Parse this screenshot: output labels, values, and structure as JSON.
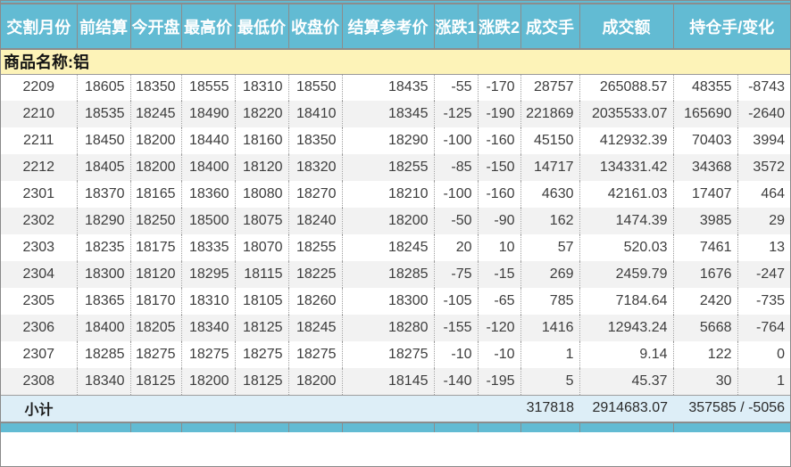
{
  "header": {
    "columns": [
      {
        "key": "delivery-month",
        "label": "交割月份"
      },
      {
        "key": "prev-settlement",
        "label": "前结算"
      },
      {
        "key": "open",
        "label": "今开盘"
      },
      {
        "key": "high",
        "label": "最高价"
      },
      {
        "key": "low",
        "label": "最低价"
      },
      {
        "key": "close",
        "label": "收盘价"
      },
      {
        "key": "settlement-ref",
        "label": "结算参考价"
      },
      {
        "key": "change1",
        "label": "涨跌1"
      },
      {
        "key": "change2",
        "label": "涨跌2"
      },
      {
        "key": "volume",
        "label": "成交手"
      },
      {
        "key": "turnover",
        "label": "成交额"
      },
      {
        "key": "oi-change",
        "label": "持仓手/变化",
        "span": 2
      }
    ]
  },
  "group": {
    "label": "商品名称:铝"
  },
  "cell_keys": [
    "delivery-month",
    "prev-settlement",
    "open",
    "high",
    "low",
    "close",
    "settlement-ref",
    "change1",
    "change2",
    "volume",
    "turnover",
    "open-interest",
    "oi-delta"
  ],
  "rows": [
    [
      "2209",
      "18605",
      "18350",
      "18555",
      "18310",
      "18550",
      "18435",
      "-55",
      "-170",
      "28757",
      "265088.57",
      "48355",
      "-8743"
    ],
    [
      "2210",
      "18535",
      "18245",
      "18490",
      "18220",
      "18410",
      "18345",
      "-125",
      "-190",
      "221869",
      "2035533.07",
      "165690",
      "-2640"
    ],
    [
      "2211",
      "18450",
      "18200",
      "18440",
      "18160",
      "18350",
      "18290",
      "-100",
      "-160",
      "45150",
      "412932.39",
      "70403",
      "3994"
    ],
    [
      "2212",
      "18405",
      "18200",
      "18400",
      "18120",
      "18320",
      "18255",
      "-85",
      "-150",
      "14717",
      "134331.42",
      "34368",
      "3572"
    ],
    [
      "2301",
      "18370",
      "18165",
      "18360",
      "18080",
      "18270",
      "18210",
      "-100",
      "-160",
      "4630",
      "42161.03",
      "17407",
      "464"
    ],
    [
      "2302",
      "18290",
      "18250",
      "18500",
      "18075",
      "18240",
      "18200",
      "-50",
      "-90",
      "162",
      "1474.39",
      "3985",
      "29"
    ],
    [
      "2303",
      "18235",
      "18175",
      "18335",
      "18070",
      "18255",
      "18245",
      "20",
      "10",
      "57",
      "520.03",
      "7461",
      "13"
    ],
    [
      "2304",
      "18300",
      "18120",
      "18295",
      "18115",
      "18225",
      "18285",
      "-75",
      "-15",
      "269",
      "2459.79",
      "1676",
      "-247"
    ],
    [
      "2305",
      "18365",
      "18170",
      "18310",
      "18105",
      "18260",
      "18300",
      "-105",
      "-65",
      "785",
      "7184.64",
      "2420",
      "-735"
    ],
    [
      "2306",
      "18400",
      "18205",
      "18340",
      "18125",
      "18245",
      "18280",
      "-155",
      "-120",
      "1416",
      "12943.24",
      "5668",
      "-764"
    ],
    [
      "2307",
      "18285",
      "18275",
      "18275",
      "18275",
      "18275",
      "18275",
      "-10",
      "-10",
      "1",
      "9.14",
      "122",
      "0"
    ],
    [
      "2308",
      "18340",
      "18125",
      "18200",
      "18125",
      "18200",
      "18145",
      "-140",
      "-195",
      "5",
      "45.37",
      "30",
      "1"
    ]
  ],
  "subtotal": {
    "label": "小计",
    "volume": "317818",
    "turnover": "2914683.07",
    "oi_change": "357585 / -5056"
  },
  "colors": {
    "header_bg": "#62bbd3",
    "header_text": "#ffffff",
    "group_bg": "#fdf3b8",
    "row_alt_bg": "#f2f2f2",
    "subtotal_bg": "#ddeef7",
    "border": "#8c8c8c",
    "text": "#3d3d3d"
  }
}
